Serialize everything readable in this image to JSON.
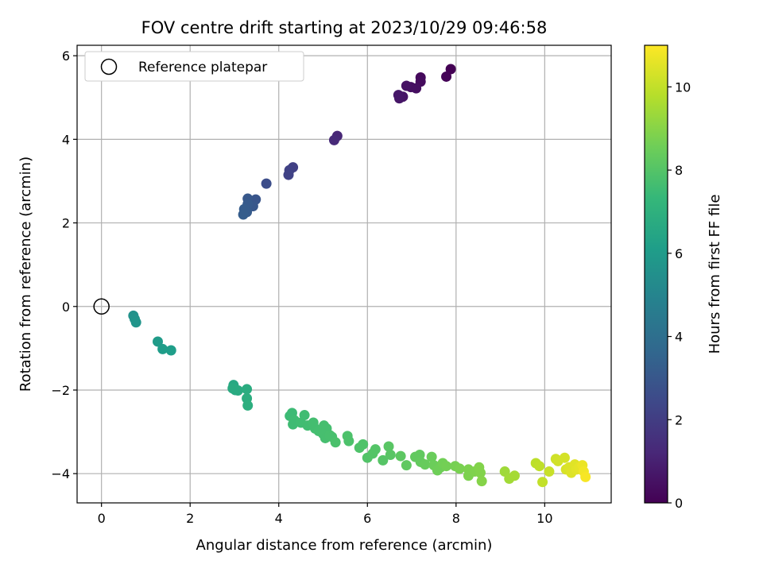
{
  "chart_data": {
    "type": "scatter",
    "title": "FOV centre drift starting at 2023/10/29 09:46:58",
    "xlabel": "Angular distance from reference (arcmin)",
    "ylabel": "Rotation from reference (arcmin)",
    "xlim": [
      -0.55,
      11.5
    ],
    "ylim": [
      -4.7,
      6.25
    ],
    "xticks": [
      0,
      2,
      4,
      6,
      8,
      10
    ],
    "yticks": [
      -4,
      -2,
      0,
      2,
      4,
      6
    ],
    "grid": true,
    "legend": {
      "placement": "top-left",
      "entries": [
        "Reference platepar"
      ]
    },
    "reference_point": {
      "x": 0,
      "y": 0,
      "label": "Reference platepar",
      "marker": "open-circle"
    },
    "colorbar": {
      "label": "Hours from first FF file",
      "range": [
        0,
        11
      ],
      "ticks": [
        0,
        2,
        4,
        6,
        8,
        10
      ],
      "colormap": "viridis",
      "stops": [
        "#440154",
        "#482878",
        "#3e4989",
        "#31688e",
        "#26828e",
        "#1f9e89",
        "#35b779",
        "#6ece58",
        "#b5de2b",
        "#fde725"
      ]
    },
    "series": [
      {
        "points": [
          [
            7.88,
            5.68,
            0.0
          ],
          [
            7.78,
            5.5,
            0.1
          ],
          [
            7.2,
            5.48,
            0.25
          ],
          [
            7.2,
            5.38,
            0.3
          ],
          [
            7.1,
            5.22,
            0.4
          ],
          [
            6.98,
            5.25,
            0.45
          ],
          [
            6.88,
            5.28,
            0.5
          ],
          [
            6.8,
            5.02,
            0.6
          ],
          [
            6.72,
            4.98,
            0.65
          ],
          [
            6.7,
            5.06,
            0.7
          ],
          [
            5.32,
            4.08,
            1.2
          ],
          [
            5.25,
            3.98,
            1.3
          ],
          [
            4.32,
            3.33,
            2.1
          ],
          [
            4.24,
            3.26,
            2.15
          ],
          [
            4.22,
            3.15,
            2.2
          ],
          [
            3.72,
            2.94,
            2.6
          ],
          [
            3.48,
            2.56,
            2.9
          ],
          [
            3.42,
            2.4,
            3.0
          ],
          [
            3.3,
            2.58,
            3.05
          ],
          [
            3.3,
            2.45,
            3.1
          ],
          [
            3.28,
            2.26,
            3.15
          ],
          [
            3.22,
            2.33,
            3.2
          ],
          [
            3.2,
            2.2,
            3.25
          ],
          [
            0.72,
            -0.22,
            5.6
          ],
          [
            0.75,
            -0.3,
            5.65
          ],
          [
            0.78,
            -0.38,
            5.7
          ],
          [
            1.27,
            -0.84,
            6.0
          ],
          [
            1.38,
            -1.02,
            6.05
          ],
          [
            1.57,
            -1.05,
            6.1
          ],
          [
            2.98,
            -1.88,
            6.6
          ],
          [
            3.02,
            -2.0,
            6.65
          ],
          [
            2.96,
            -1.96,
            6.7
          ],
          [
            3.08,
            -2.01,
            6.7
          ],
          [
            3.28,
            -1.98,
            6.8
          ],
          [
            3.28,
            -2.2,
            6.85
          ],
          [
            3.3,
            -2.37,
            6.9
          ],
          [
            4.3,
            -2.55,
            7.5
          ],
          [
            4.25,
            -2.62,
            7.5
          ],
          [
            4.35,
            -2.72,
            7.55
          ],
          [
            4.32,
            -2.82,
            7.55
          ],
          [
            4.58,
            -2.6,
            7.6
          ],
          [
            4.5,
            -2.78,
            7.6
          ],
          [
            4.65,
            -2.85,
            7.62
          ],
          [
            4.78,
            -2.78,
            7.65
          ],
          [
            4.82,
            -2.92,
            7.65
          ],
          [
            4.9,
            -2.98,
            7.68
          ],
          [
            5.02,
            -2.85,
            7.7
          ],
          [
            5.08,
            -2.92,
            7.7
          ],
          [
            5.0,
            -3.05,
            7.72
          ],
          [
            5.05,
            -3.15,
            7.72
          ],
          [
            5.15,
            -3.08,
            7.75
          ],
          [
            5.2,
            -3.12,
            7.75
          ],
          [
            5.28,
            -3.25,
            7.8
          ],
          [
            5.55,
            -3.1,
            7.85
          ],
          [
            5.58,
            -3.22,
            7.85
          ],
          [
            5.82,
            -3.38,
            7.9
          ],
          [
            5.9,
            -3.3,
            7.9
          ],
          [
            6.0,
            -3.62,
            7.95
          ],
          [
            6.12,
            -3.52,
            8.0
          ],
          [
            6.18,
            -3.42,
            8.0
          ],
          [
            6.35,
            -3.68,
            8.05
          ],
          [
            6.48,
            -3.35,
            8.1
          ],
          [
            6.52,
            -3.55,
            8.1
          ],
          [
            6.75,
            -3.58,
            8.2
          ],
          [
            6.88,
            -3.8,
            8.25
          ],
          [
            7.08,
            -3.6,
            8.3
          ],
          [
            7.18,
            -3.55,
            8.3
          ],
          [
            7.2,
            -3.72,
            8.35
          ],
          [
            7.3,
            -3.78,
            8.4
          ],
          [
            7.45,
            -3.6,
            8.45
          ],
          [
            7.5,
            -3.8,
            8.5
          ],
          [
            7.58,
            -3.92,
            8.55
          ],
          [
            7.65,
            -3.85,
            8.55
          ],
          [
            7.7,
            -3.75,
            8.6
          ],
          [
            7.78,
            -3.82,
            8.65
          ],
          [
            7.98,
            -3.82,
            8.7
          ],
          [
            8.08,
            -3.88,
            8.75
          ],
          [
            8.28,
            -3.9,
            8.8
          ],
          [
            8.28,
            -4.05,
            8.8
          ],
          [
            8.42,
            -3.95,
            8.85
          ],
          [
            8.52,
            -3.85,
            8.9
          ],
          [
            8.55,
            -3.98,
            8.9
          ],
          [
            8.58,
            -4.18,
            8.95
          ],
          [
            9.1,
            -3.95,
            9.4
          ],
          [
            9.2,
            -4.12,
            9.45
          ],
          [
            9.32,
            -4.05,
            9.5
          ],
          [
            9.8,
            -3.75,
            9.9
          ],
          [
            9.88,
            -3.82,
            9.95
          ],
          [
            9.95,
            -4.2,
            10.0
          ],
          [
            10.1,
            -3.95,
            10.1
          ],
          [
            10.25,
            -3.65,
            10.2
          ],
          [
            10.3,
            -3.7,
            10.25
          ],
          [
            10.45,
            -3.62,
            10.3
          ],
          [
            10.48,
            -3.9,
            10.35
          ],
          [
            10.55,
            -3.85,
            10.4
          ],
          [
            10.6,
            -3.98,
            10.45
          ],
          [
            10.68,
            -3.78,
            10.5
          ],
          [
            10.72,
            -3.9,
            10.55
          ],
          [
            10.78,
            -3.85,
            10.6
          ],
          [
            10.85,
            -3.8,
            10.7
          ],
          [
            10.88,
            -3.95,
            10.8
          ],
          [
            10.92,
            -4.08,
            10.9
          ]
        ]
      }
    ]
  }
}
